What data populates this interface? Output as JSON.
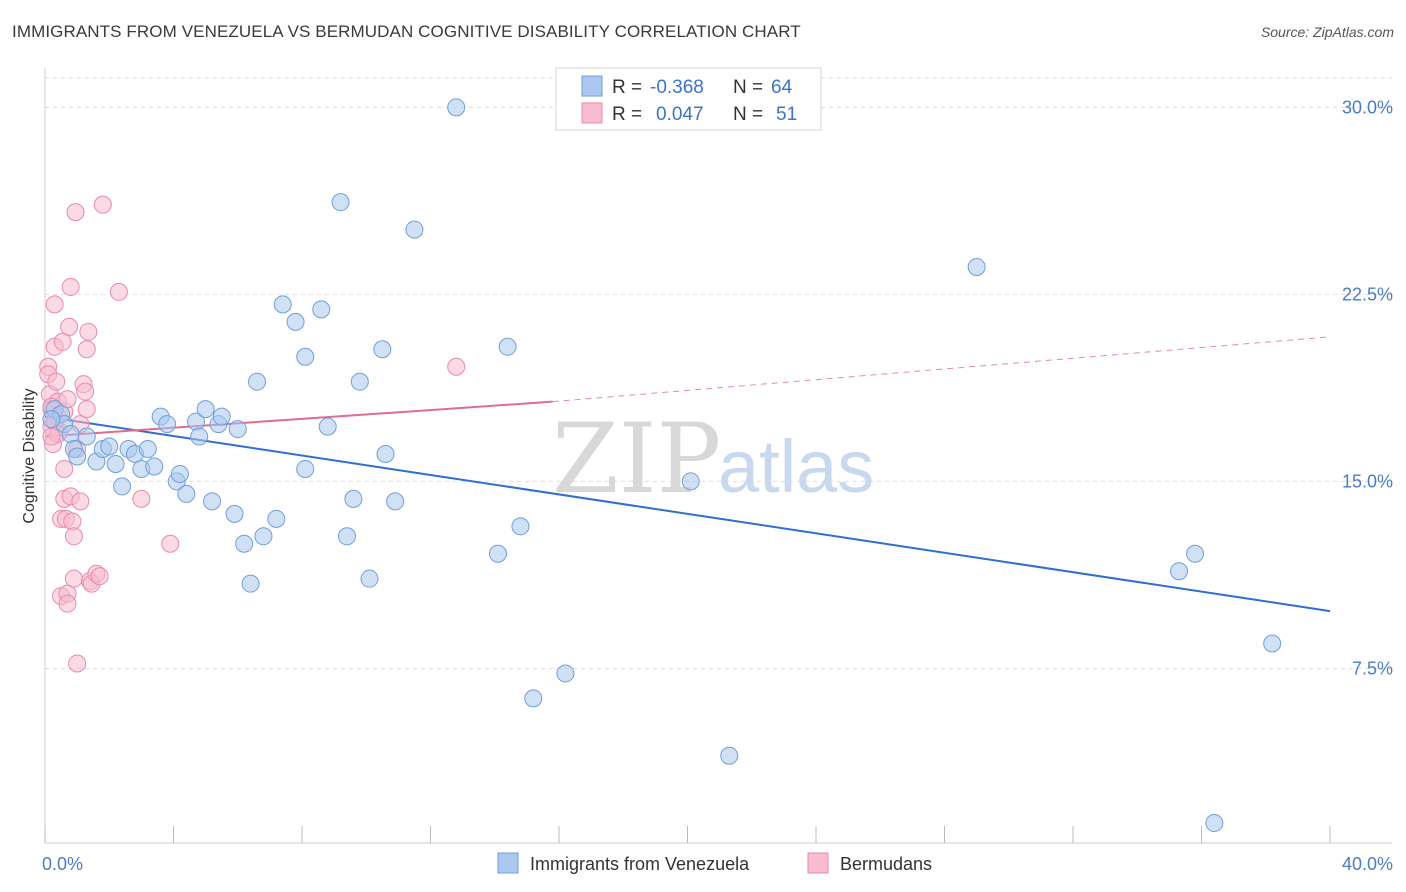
{
  "header": {
    "title": "IMMIGRANTS FROM VENEZUELA VS BERMUDAN COGNITIVE DISABILITY CORRELATION CHART",
    "source": "Source: ZipAtlas.com"
  },
  "watermark": {
    "zip": "ZIP",
    "atlas": "atlas"
  },
  "colors": {
    "blue_fill": "#aac8ee",
    "blue_stroke": "#6f9fdc",
    "blue_line": "#2f6fcf",
    "pink_fill": "#f7bcd0",
    "pink_stroke": "#e98aaa",
    "pink_line": "#e06b95",
    "grid": "#dddddd",
    "tick_text": "#4a7cc9"
  },
  "legend": {
    "rows": [
      {
        "r_label": "R = ",
        "r_value": "-0.368",
        "n_label": "N = ",
        "n_value": "64"
      },
      {
        "r_label": "R = ",
        "r_value": "0.047",
        "n_label": "N = ",
        "n_value": "51"
      }
    ]
  },
  "bottom_legend": {
    "items": [
      "Immigrants from Venezuela",
      "Bermudans"
    ]
  },
  "chart_data": {
    "type": "scatter",
    "title": "IMMIGRANTS FROM VENEZUELA VS BERMUDAN COGNITIVE DISABILITY CORRELATION CHART",
    "xlabel": "",
    "ylabel": "Cognitive Disability",
    "xlim": [
      0,
      40
    ],
    "ylim": [
      0.5,
      31.5
    ],
    "x_tick_labels": [
      "0.0%",
      "40.0%"
    ],
    "y_ticks": [
      7.5,
      15.0,
      22.5,
      30.0
    ],
    "y_tick_labels": [
      "7.5%",
      "15.0%",
      "22.5%",
      "30.0%"
    ],
    "grid": true,
    "legend_position": "top-center",
    "series": [
      {
        "name": "Immigrants from Venezuela",
        "r": -0.368,
        "n": 64,
        "trend": {
          "x": [
            0.0,
            40.0
          ],
          "y": [
            17.6,
            9.8
          ]
        },
        "points": [
          [
            0.3,
            17.9
          ],
          [
            0.5,
            17.7
          ],
          [
            0.6,
            17.3
          ],
          [
            0.8,
            16.9
          ],
          [
            0.9,
            16.3
          ],
          [
            1.0,
            16.0
          ],
          [
            1.3,
            16.8
          ],
          [
            1.6,
            15.8
          ],
          [
            1.8,
            16.3
          ],
          [
            2.0,
            16.4
          ],
          [
            2.2,
            15.7
          ],
          [
            2.4,
            14.8
          ],
          [
            2.6,
            16.3
          ],
          [
            2.8,
            16.1
          ],
          [
            3.0,
            15.5
          ],
          [
            3.2,
            16.3
          ],
          [
            3.4,
            15.6
          ],
          [
            3.6,
            17.6
          ],
          [
            3.8,
            17.3
          ],
          [
            4.1,
            15.0
          ],
          [
            4.2,
            15.3
          ],
          [
            4.4,
            14.5
          ],
          [
            4.7,
            17.4
          ],
          [
            4.8,
            16.8
          ],
          [
            5.0,
            17.9
          ],
          [
            5.2,
            14.2
          ],
          [
            5.4,
            17.3
          ],
          [
            5.5,
            17.6
          ],
          [
            5.9,
            13.7
          ],
          [
            6.0,
            17.1
          ],
          [
            6.2,
            12.5
          ],
          [
            6.4,
            10.9
          ],
          [
            6.6,
            19.0
          ],
          [
            6.8,
            12.8
          ],
          [
            7.2,
            13.5
          ],
          [
            7.4,
            22.1
          ],
          [
            7.8,
            21.4
          ],
          [
            8.1,
            20.0
          ],
          [
            8.1,
            15.5
          ],
          [
            8.6,
            21.9
          ],
          [
            8.8,
            17.2
          ],
          [
            9.2,
            26.2
          ],
          [
            9.4,
            12.8
          ],
          [
            9.6,
            14.3
          ],
          [
            9.8,
            19.0
          ],
          [
            10.1,
            11.1
          ],
          [
            10.5,
            20.3
          ],
          [
            10.6,
            16.1
          ],
          [
            10.9,
            14.2
          ],
          [
            11.5,
            25.1
          ],
          [
            12.8,
            30.0
          ],
          [
            14.1,
            12.1
          ],
          [
            14.4,
            20.4
          ],
          [
            14.8,
            13.2
          ],
          [
            15.2,
            6.3
          ],
          [
            16.2,
            7.3
          ],
          [
            20.1,
            15.0
          ],
          [
            21.3,
            4.0
          ],
          [
            29.0,
            23.6
          ],
          [
            35.3,
            11.4
          ],
          [
            35.8,
            12.1
          ],
          [
            38.2,
            8.5
          ],
          [
            36.4,
            1.3
          ],
          [
            0.2,
            17.5
          ]
        ]
      },
      {
        "name": "Bermudans",
        "r": 0.047,
        "n": 51,
        "trend": {
          "x": [
            0.0,
            15.8
          ],
          "y": [
            16.8,
            18.2
          ]
        },
        "trend_dashed": {
          "x": [
            15.8,
            40.0
          ],
          "y": [
            18.2,
            20.8
          ]
        },
        "points": [
          [
            0.1,
            19.6
          ],
          [
            0.1,
            19.3
          ],
          [
            0.15,
            18.5
          ],
          [
            0.2,
            17.9
          ],
          [
            0.2,
            17.2
          ],
          [
            0.25,
            16.5
          ],
          [
            0.3,
            22.1
          ],
          [
            0.3,
            20.4
          ],
          [
            0.35,
            19.0
          ],
          [
            0.4,
            18.2
          ],
          [
            0.4,
            17.6
          ],
          [
            0.45,
            17.0
          ],
          [
            0.5,
            13.5
          ],
          [
            0.5,
            10.4
          ],
          [
            0.55,
            20.6
          ],
          [
            0.6,
            15.5
          ],
          [
            0.6,
            14.3
          ],
          [
            0.65,
            13.5
          ],
          [
            0.7,
            10.5
          ],
          [
            0.7,
            10.1
          ],
          [
            0.75,
            21.2
          ],
          [
            0.8,
            22.8
          ],
          [
            0.8,
            14.4
          ],
          [
            0.85,
            13.4
          ],
          [
            0.9,
            11.1
          ],
          [
            0.9,
            12.8
          ],
          [
            0.95,
            25.8
          ],
          [
            1.0,
            16.3
          ],
          [
            1.0,
            7.7
          ],
          [
            1.1,
            17.3
          ],
          [
            1.1,
            14.2
          ],
          [
            1.2,
            18.9
          ],
          [
            1.25,
            18.6
          ],
          [
            1.3,
            17.9
          ],
          [
            1.3,
            20.3
          ],
          [
            1.35,
            21.0
          ],
          [
            1.4,
            11.0
          ],
          [
            1.45,
            10.9
          ],
          [
            1.6,
            11.3
          ],
          [
            1.7,
            11.2
          ],
          [
            1.8,
            26.1
          ],
          [
            2.3,
            22.6
          ],
          [
            3.0,
            14.3
          ],
          [
            3.9,
            12.5
          ],
          [
            12.8,
            19.6
          ],
          [
            0.2,
            18.0
          ],
          [
            0.3,
            17.4
          ],
          [
            0.4,
            16.9
          ],
          [
            0.6,
            17.8
          ],
          [
            0.7,
            18.3
          ],
          [
            0.2,
            16.8
          ]
        ]
      }
    ]
  }
}
